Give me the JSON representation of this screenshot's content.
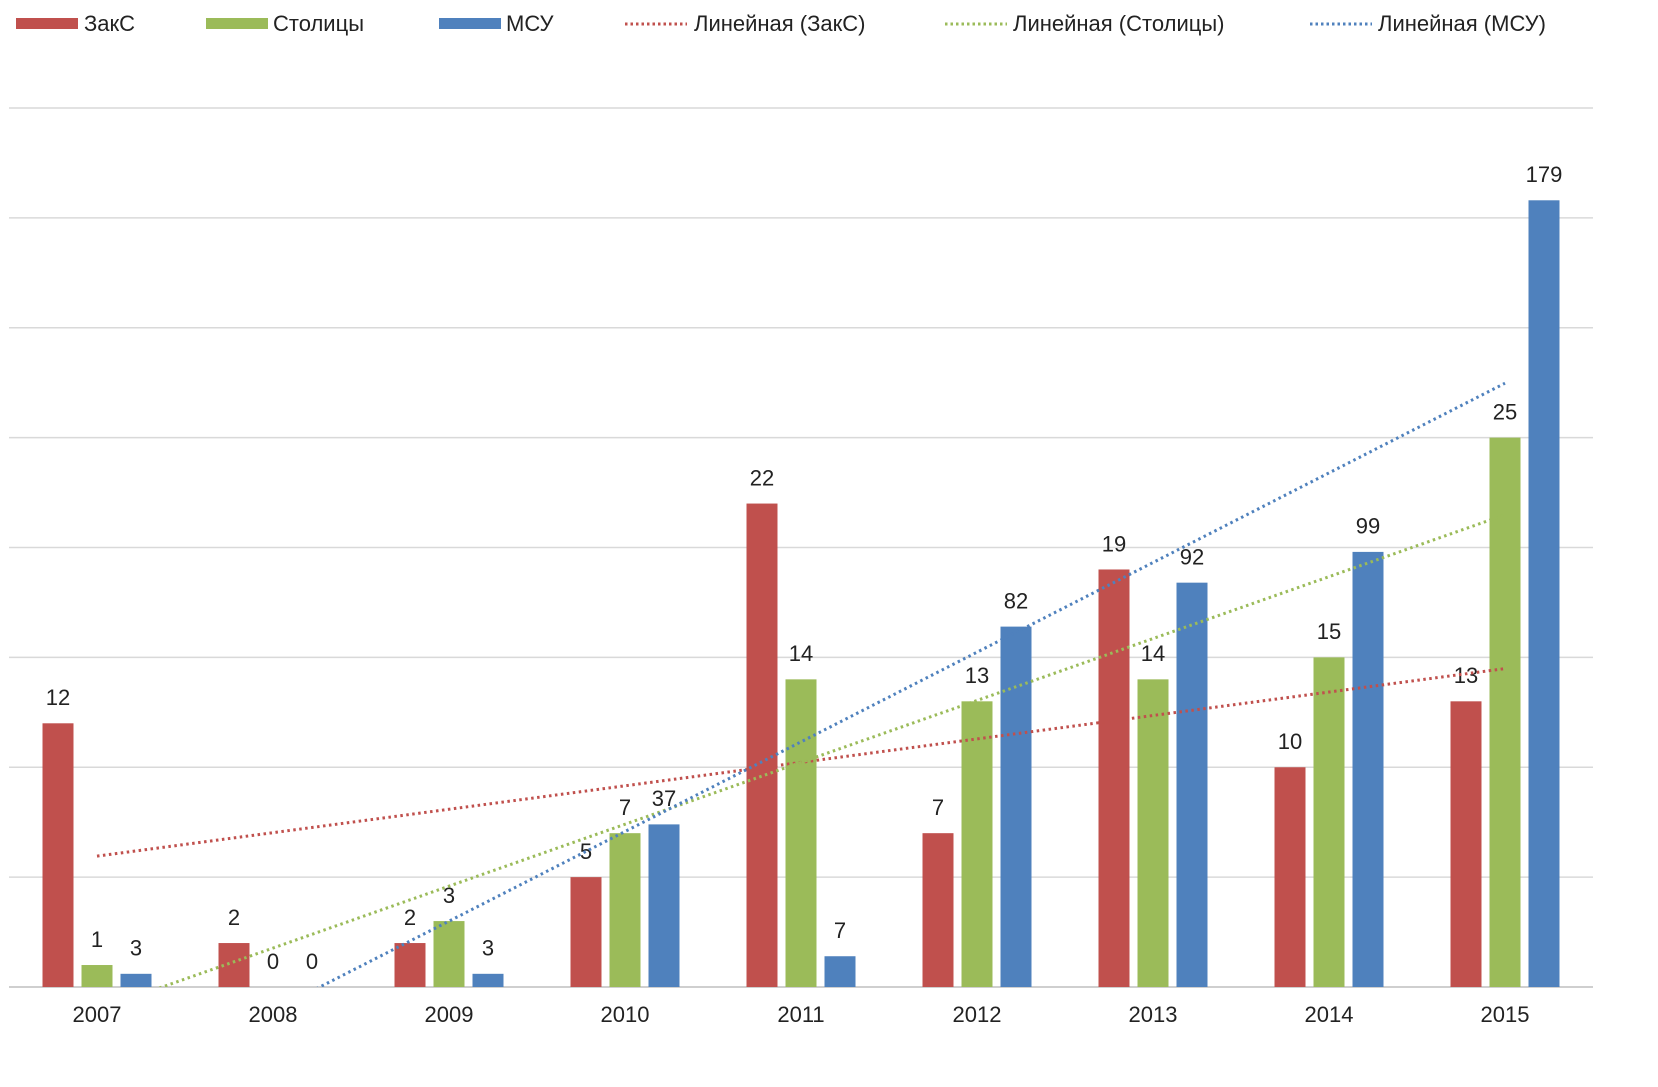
{
  "chart_data": {
    "type": "bar",
    "categories": [
      "2007",
      "2008",
      "2009",
      "2010",
      "2011",
      "2012",
      "2013",
      "2014",
      "2015"
    ],
    "series": [
      {
        "name": "ЗакС",
        "color": "#c0504d",
        "values": [
          12,
          2,
          2,
          5,
          22,
          7,
          19,
          10,
          13
        ],
        "trendline": "Линейная (ЗакС)"
      },
      {
        "name": "Столицы",
        "color": "#9bbb59",
        "values": [
          1,
          0,
          3,
          7,
          14,
          13,
          14,
          15,
          25
        ],
        "trendline": "Линейная (Столицы)"
      },
      {
        "name": "МСУ",
        "color": "#4f81bd",
        "values": [
          3,
          0,
          3,
          37,
          7,
          82,
          92,
          99,
          179
        ],
        "axis": "y2",
        "trendline": "Линейная (МСУ)"
      }
    ],
    "ylim": [
      0,
      40
    ],
    "yticks": [
      0,
      5,
      10,
      15,
      20,
      25,
      30,
      35,
      40
    ],
    "y2lim": [
      0,
      200
    ],
    "grid": true,
    "legend": "top"
  }
}
